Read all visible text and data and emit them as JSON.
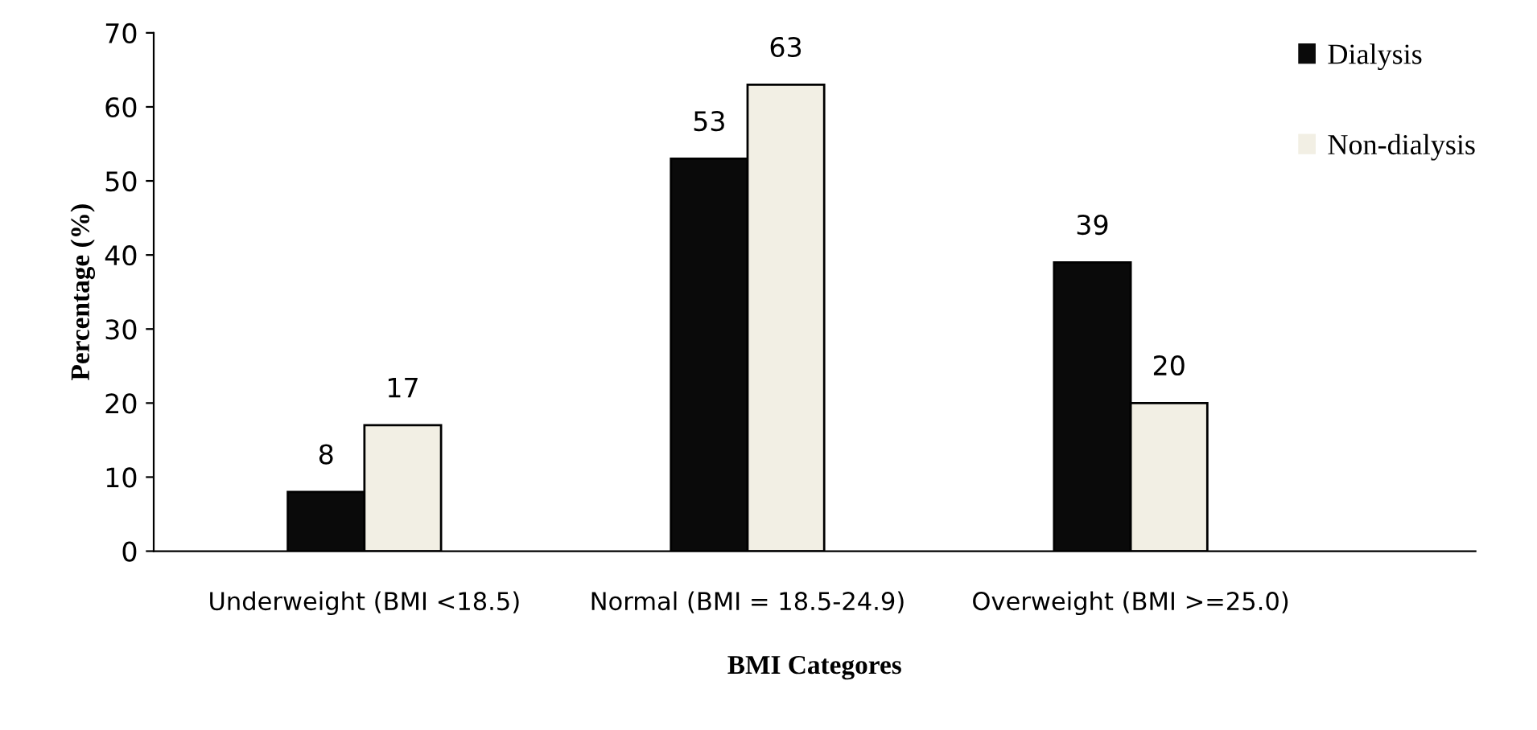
{
  "chart_data": {
    "type": "bar",
    "xlabel": "BMI Categores",
    "ylabel": "Percentage (%)",
    "categories": [
      "Underweight (BMI <18.5)",
      "Normal (BMI = 18.5-24.9)",
      "Overweight (BMI >=25.0)"
    ],
    "series": [
      {
        "name": "Dialysis",
        "color": "#0a0a0a",
        "values": [
          8,
          53,
          39
        ]
      },
      {
        "name": "Non-dialysis",
        "color": "#f2efe4",
        "values": [
          17,
          63,
          20
        ]
      }
    ],
    "ylim": [
      0,
      70
    ],
    "yticks": [
      0,
      10,
      20,
      30,
      40,
      50,
      60,
      70
    ],
    "grid": false,
    "legend": "top right",
    "data_labels": true
  }
}
